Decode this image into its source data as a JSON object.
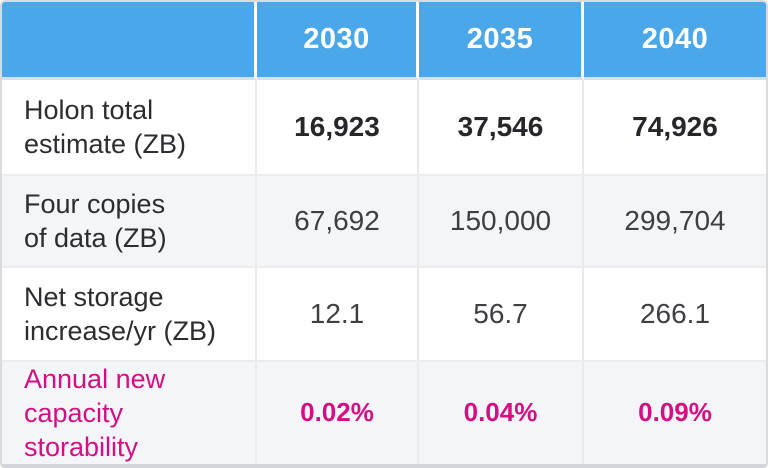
{
  "colors": {
    "header_blue": "#4aa7e9",
    "accent_pink": "#d40e83",
    "alt_row_bg": "#f4f5f8",
    "divider_gray": "#e9eaec",
    "dark_text": "#2c2d30"
  },
  "table": {
    "columns": [
      "2030",
      "2035",
      "2040"
    ],
    "rows": [
      {
        "label": "Holon total\nestimate (ZB)",
        "values": [
          "16,923",
          "37,546",
          "74,926"
        ]
      },
      {
        "label": "Four copies\nof data (ZB)",
        "values": [
          "67,692",
          "150,000",
          "299,704"
        ]
      },
      {
        "label": "Net storage\nincrease/yr (ZB)",
        "values": [
          "12.1",
          "56.7",
          "266.1"
        ]
      },
      {
        "label": "Annual new\ncapacity\nstorability",
        "values": [
          "0.02%",
          "0.04%",
          "0.09%"
        ]
      }
    ]
  },
  "chart_data": {
    "type": "table",
    "title": "",
    "columns": [
      "2030",
      "2035",
      "2040"
    ],
    "rows": [
      {
        "label": "Holon total estimate (ZB)",
        "values": [
          16923,
          37546,
          74926
        ]
      },
      {
        "label": "Four copies of data (ZB)",
        "values": [
          67692,
          150000,
          299704
        ]
      },
      {
        "label": "Net storage increase/yr (ZB)",
        "values": [
          12.1,
          56.7,
          266.1
        ]
      },
      {
        "label": "Annual new capacity storability",
        "values": [
          "0.02%",
          "0.04%",
          "0.09%"
        ]
      }
    ],
    "layout_hints": {
      "header_fill": "#4aa7e9",
      "header_text_color": "#ffffff",
      "last_row_accent_color": "#d40e83",
      "alternating_row_shading": true
    }
  }
}
